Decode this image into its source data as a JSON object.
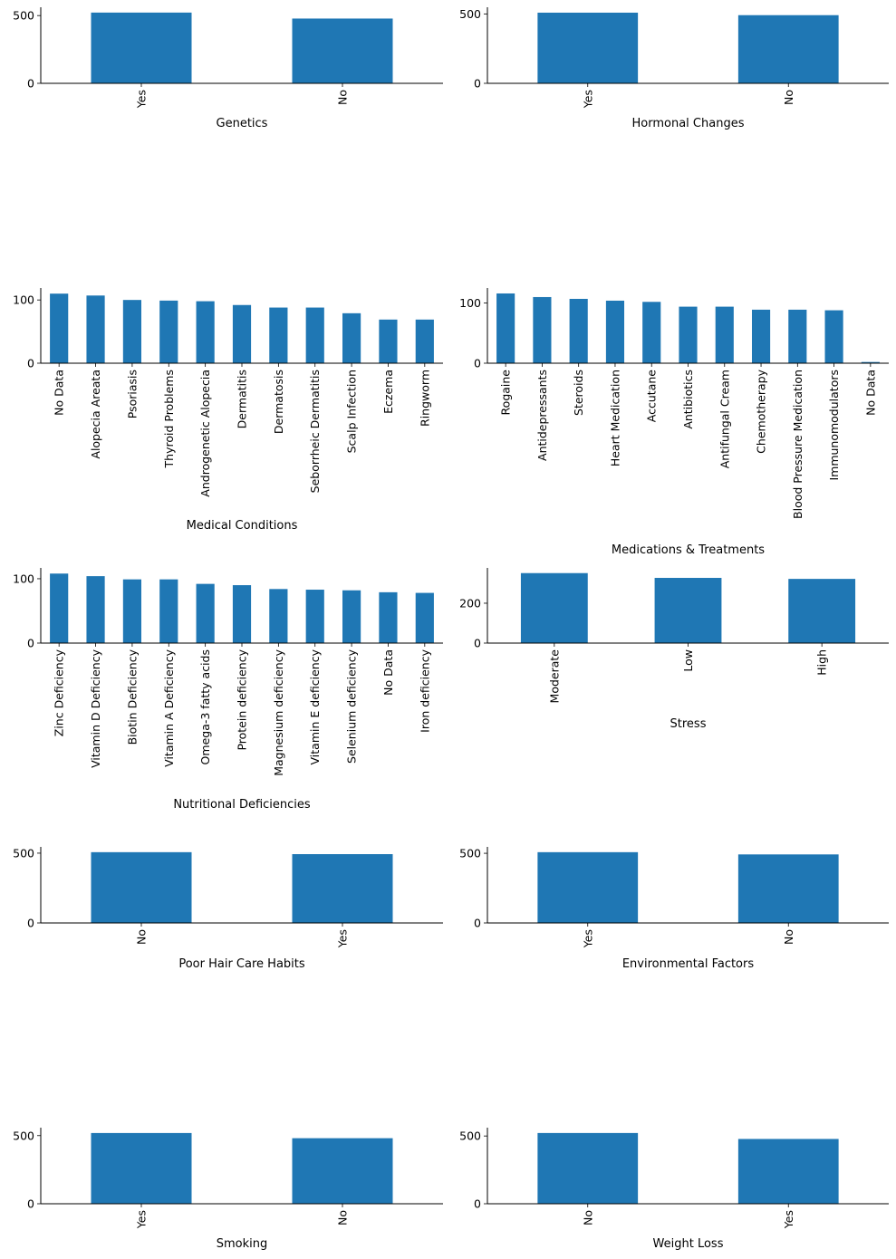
{
  "chart_data": [
    {
      "type": "bar",
      "xlabel": "Genetics",
      "categories": [
        "Yes",
        "No"
      ],
      "values": [
        522,
        478
      ],
      "ylim": [
        0,
        548
      ],
      "yticks": [
        0,
        500
      ],
      "grid": false,
      "color": "#1f77b4"
    },
    {
      "type": "bar",
      "xlabel": "Hormonal Changes",
      "categories": [
        "Yes",
        "No"
      ],
      "values": [
        509,
        491
      ],
      "ylim": [
        0,
        535
      ],
      "yticks": [
        0,
        500
      ],
      "grid": false,
      "color": "#1f77b4"
    },
    {
      "type": "bar",
      "xlabel": "Medical Conditions",
      "categories": [
        "No Data",
        "Alopecia Areata",
        "Psoriasis",
        "Thyroid Problems",
        "Androgenetic Alopecia",
        "Dermatitis",
        "Dermatosis",
        "Seborrheic Dermatitis",
        "Scalp Infection",
        "Eczema",
        "Ringworm"
      ],
      "values": [
        110,
        107,
        100,
        99,
        98,
        92,
        88,
        88,
        79,
        69,
        69
      ],
      "ylim": [
        0,
        116
      ],
      "yticks": [
        0,
        100
      ],
      "grid": false,
      "color": "#1f77b4"
    },
    {
      "type": "bar",
      "xlabel": "Medications & Treatments",
      "categories": [
        "Rogaine",
        "Antidepressants",
        "Steroids",
        "Heart Medication",
        "Accutane",
        "Antibiotics",
        "Antifungal Cream",
        "Chemotherapy",
        "Blood Pressure Medication",
        "Immunomodulators",
        "No Data"
      ],
      "values": [
        116,
        110,
        107,
        104,
        102,
        94,
        94,
        89,
        89,
        88,
        2
      ],
      "ylim": [
        0,
        122
      ],
      "yticks": [
        0,
        100
      ],
      "grid": false,
      "color": "#1f77b4"
    },
    {
      "type": "bar",
      "xlabel": "Nutritional Deficiencies",
      "categories": [
        "Zinc Deficiency",
        "Vitamin D Deficiency",
        "Biotin Deficiency",
        "Vitamin A Deficiency",
        "Omega-3 fatty acids",
        "Protein deficiency",
        "Magnesium deficiency",
        "Vitamin E deficiency",
        "Selenium deficiency",
        "No Data",
        "Iron deficiency"
      ],
      "values": [
        108,
        104,
        99,
        99,
        92,
        90,
        84,
        83,
        82,
        79,
        78
      ],
      "ylim": [
        0,
        114
      ],
      "yticks": [
        0,
        100
      ],
      "grid": false,
      "color": "#1f77b4"
    },
    {
      "type": "bar",
      "xlabel": "Stress",
      "categories": [
        "Moderate",
        "Low",
        "High"
      ],
      "values": [
        351,
        327,
        322
      ],
      "ylim": [
        0,
        368
      ],
      "yticks": [
        0,
        200
      ],
      "grid": false,
      "color": "#1f77b4"
    },
    {
      "type": "bar",
      "xlabel": "Poor Hair Care Habits",
      "categories": [
        "No",
        "Yes"
      ],
      "values": [
        507,
        493
      ],
      "ylim": [
        0,
        532
      ],
      "yticks": [
        0,
        500
      ],
      "grid": false,
      "color": "#1f77b4"
    },
    {
      "type": "bar",
      "xlabel": "Environmental Factors",
      "categories": [
        "Yes",
        "No"
      ],
      "values": [
        508,
        492
      ],
      "ylim": [
        0,
        533
      ],
      "yticks": [
        0,
        500
      ],
      "grid": false,
      "color": "#1f77b4"
    },
    {
      "type": "bar",
      "xlabel": "Smoking",
      "categories": [
        "Yes",
        "No"
      ],
      "values": [
        519,
        481
      ],
      "ylim": [
        0,
        545
      ],
      "yticks": [
        0,
        500
      ],
      "grid": false,
      "color": "#1f77b4"
    },
    {
      "type": "bar",
      "xlabel": "Weight Loss",
      "categories": [
        "No",
        "Yes"
      ],
      "values": [
        522,
        478
      ],
      "ylim": [
        0,
        548
      ],
      "yticks": [
        0,
        500
      ],
      "grid": false,
      "color": "#1f77b4"
    }
  ]
}
